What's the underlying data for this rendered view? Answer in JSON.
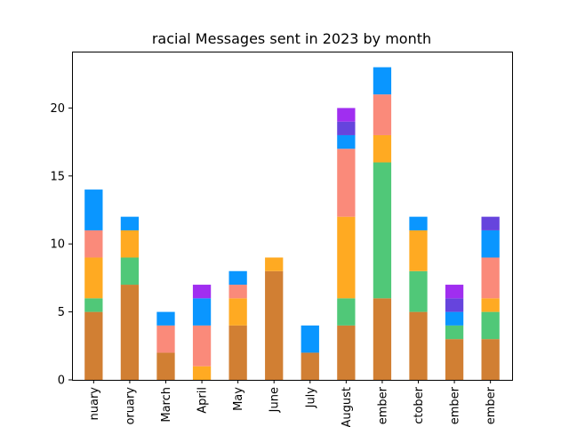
{
  "chart_data": {
    "type": "bar",
    "stacked": true,
    "title": "racial Messages sent in 2023 by month",
    "xlabel": "",
    "ylabel": "",
    "ylim": [
      0,
      24.15
    ],
    "yticks": [
      0,
      5,
      10,
      15,
      20
    ],
    "ytick_labels": [
      "0",
      "5",
      "10",
      "15",
      "20"
    ],
    "grid": false,
    "legend": "none",
    "categories": [
      "January",
      "February",
      "March",
      "April",
      "May",
      "June",
      "July",
      "August",
      "September",
      "October",
      "November",
      "December"
    ],
    "category_labels_visible": [
      "nuary",
      "oruary",
      "March",
      "April",
      "May",
      "June",
      "July",
      "August",
      "ember",
      "ctober",
      "ember",
      "ember"
    ],
    "series": [
      {
        "color": "#d17f33",
        "values": [
          5,
          7,
          2,
          0,
          4,
          8,
          2,
          4,
          6,
          5,
          3,
          3
        ]
      },
      {
        "color": "#50c878",
        "values": [
          1,
          2,
          0,
          0,
          0,
          0,
          0,
          2,
          10,
          3,
          1,
          2
        ]
      },
      {
        "color": "#ffaa22",
        "values": [
          3,
          2,
          0,
          1,
          2,
          1,
          0,
          6,
          2,
          3,
          0,
          1
        ]
      },
      {
        "color": "#fa8a7a",
        "values": [
          2,
          0,
          2,
          3,
          1,
          0,
          0,
          5,
          3,
          0,
          0,
          3
        ]
      },
      {
        "color": "#0a96ff",
        "values": [
          3,
          1,
          1,
          2,
          1,
          0,
          2,
          1,
          2,
          1,
          1,
          2
        ]
      },
      {
        "color": "#6644dd",
        "values": [
          0,
          0,
          0,
          0,
          0,
          0,
          0,
          1,
          0,
          0,
          1,
          1
        ]
      },
      {
        "color": "#a02ef0",
        "values": [
          0,
          0,
          0,
          1,
          0,
          0,
          0,
          1,
          0,
          0,
          1,
          0
        ]
      }
    ]
  }
}
